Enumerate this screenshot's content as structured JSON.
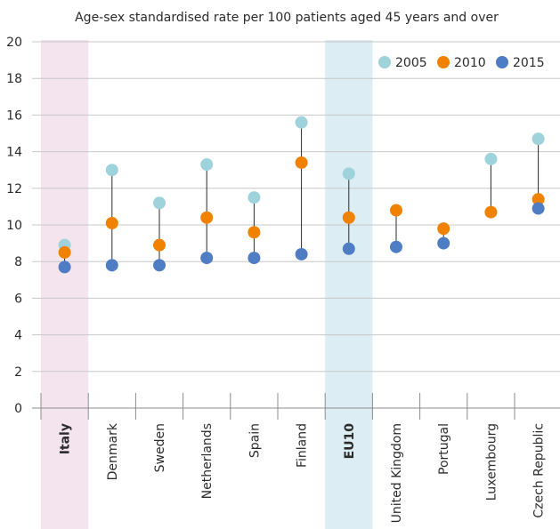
{
  "chart_data": {
    "type": "scatter",
    "title": "Age-sex standardised rate per 100 patients aged 45 years and over",
    "xlabel": "",
    "ylabel": "",
    "ylim": [
      0,
      20
    ],
    "yticks": [
      0,
      2,
      4,
      6,
      8,
      10,
      12,
      14,
      16,
      18,
      20
    ],
    "grid": true,
    "legend_position": "top-right",
    "categories": [
      "Italy",
      "Denmark",
      "Sweden",
      "Netherlands",
      "Spain",
      "Finland",
      "EU10",
      "United Kingdom",
      "Portugal",
      "Luxembourg",
      "Czech Republic"
    ],
    "highlighted": [
      {
        "category": "Italy",
        "color": "#f3e4ee"
      },
      {
        "category": "EU10",
        "color": "#dcedf3"
      }
    ],
    "series": [
      {
        "name": "2005",
        "color": "#9fd3dc",
        "values": [
          8.9,
          13.0,
          11.2,
          13.3,
          11.5,
          15.6,
          12.8,
          null,
          null,
          13.6,
          14.7
        ]
      },
      {
        "name": "2010",
        "color": "#f08200",
        "values": [
          8.5,
          10.1,
          8.9,
          10.4,
          9.6,
          13.4,
          10.4,
          10.8,
          9.8,
          10.7,
          11.4
        ]
      },
      {
        "name": "2015",
        "color": "#4f7dc4",
        "values": [
          7.7,
          7.8,
          7.8,
          8.2,
          8.2,
          8.4,
          8.7,
          8.8,
          9.0,
          null,
          10.9
        ]
      }
    ]
  }
}
